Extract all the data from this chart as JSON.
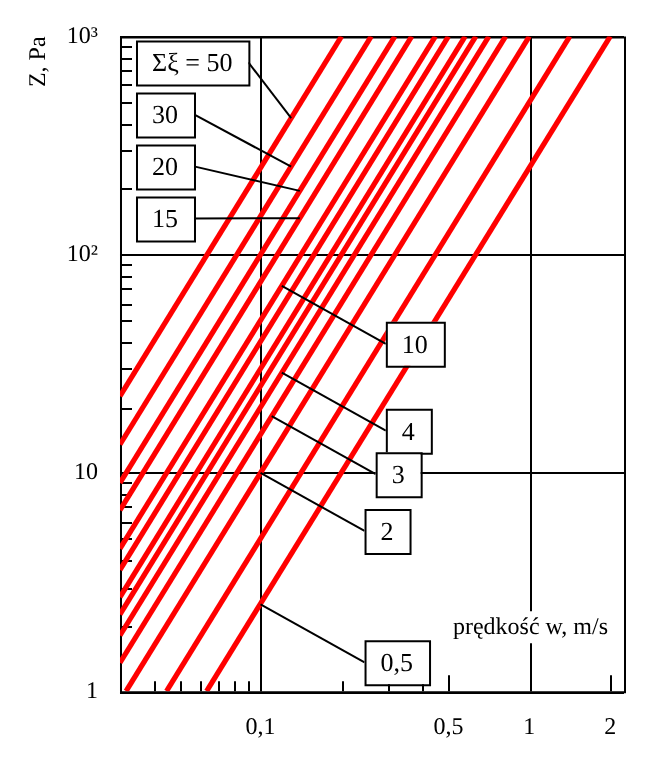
{
  "chart_data": {
    "type": "line",
    "xlabel": "prędkość w, m/s",
    "ylabel": "Z, Pa",
    "log": "xy",
    "grid": true,
    "legend": false,
    "marker": "none",
    "line_style": "solid",
    "xlim": [
      0.03,
      2.25
    ],
    "xticks": [
      {
        "value": 0.04,
        "label": null
      },
      {
        "value": 0.05,
        "label": null
      },
      {
        "value": 0.06,
        "label": null
      },
      {
        "value": 0.07,
        "label": null
      },
      {
        "value": 0.08,
        "label": null
      },
      {
        "value": 0.09,
        "label": null
      },
      {
        "value": 0.1,
        "label": "0,1"
      },
      {
        "value": 0.2,
        "label": null
      },
      {
        "value": 0.3,
        "label": null
      },
      {
        "value": 0.4,
        "label": null
      },
      {
        "value": 0.5,
        "label": "0,5"
      },
      {
        "value": 1,
        "label": "1"
      },
      {
        "value": 2,
        "label": "2"
      }
    ],
    "ylim": [
      1,
      1000
    ],
    "yticks": [
      1,
      {
        "value": 2,
        "label": null
      },
      {
        "value": 3,
        "label": null
      },
      {
        "value": 4,
        "label": null
      },
      {
        "value": 5,
        "label": null
      },
      {
        "value": 6,
        "label": null
      },
      {
        "value": 7,
        "label": null
      },
      {
        "value": 8,
        "label": null
      },
      {
        "value": 9,
        "label": null
      },
      10,
      {
        "value": 20,
        "label": null
      },
      {
        "value": 30,
        "label": null
      },
      {
        "value": 40,
        "label": null
      },
      {
        "value": 50,
        "label": null
      },
      {
        "value": 60,
        "label": null
      },
      {
        "value": 70,
        "label": null
      },
      {
        "value": 80,
        "label": null
      },
      {
        "value": 90,
        "label": null
      },
      {
        "value": 100,
        "label": "10²"
      },
      {
        "value": 200,
        "label": null
      },
      {
        "value": 300,
        "label": null
      },
      {
        "value": 400,
        "label": null
      },
      {
        "value": 500,
        "label": null
      },
      {
        "value": 600,
        "label": null
      },
      {
        "value": 700,
        "label": null
      },
      {
        "value": 800,
        "label": null
      },
      {
        "value": 900,
        "label": null
      },
      {
        "value": 1000,
        "label": "10³"
      }
    ],
    "series": [
      {
        "color": "#ff0000",
        "x": [
          0.063,
          2
        ],
        "values": [
          1,
          1000
        ]
      },
      {
        "color": "#ff0000",
        "x": [
          0.0447,
          1.414
        ],
        "values": [
          1,
          1000
        ]
      },
      {
        "color": "#ff0000",
        "x": [
          0.0316,
          1
        ],
        "values": [
          1,
          1000
        ]
      },
      {
        "color": "#ff0000",
        "x": [
          0.03,
          0.816
        ],
        "values": [
          1.35,
          1000
        ]
      },
      {
        "color": "#ff0000",
        "x": [
          0.03,
          0.707
        ],
        "values": [
          1.8,
          1000
        ]
      },
      {
        "color": "#ff0000",
        "x": [
          0.03,
          0.632
        ],
        "values": [
          2.25,
          1000
        ]
      },
      {
        "color": "#ff0000",
        "x": [
          0.03,
          0.577
        ],
        "values": [
          2.7,
          1000
        ]
      },
      {
        "color": "#ff0000",
        "x": [
          0.03,
          0.5
        ],
        "values": [
          3.6,
          1000
        ]
      },
      {
        "color": "#ff0000",
        "x": [
          0.03,
          0.447
        ],
        "values": [
          4.5,
          1000
        ]
      },
      {
        "color": "#ff0000",
        "x": [
          0.03,
          0.365
        ],
        "values": [
          6.75,
          1000
        ]
      },
      {
        "color": "#ff0000",
        "x": [
          0.03,
          0.316
        ],
        "values": [
          9,
          1000
        ]
      },
      {
        "color": "#ff0000",
        "x": [
          0.03,
          0.258
        ],
        "values": [
          13.5,
          1000
        ]
      },
      {
        "color": "#ff0000",
        "x": [
          0.03,
          0.2
        ],
        "values": [
          22.5,
          1000
        ]
      }
    ],
    "annotations": [
      {
        "text": "Σξ = 50",
        "x": 0.13,
        "y": 422
      },
      {
        "text": "30",
        "x": 0.13,
        "y": 253
      },
      {
        "text": "20",
        "x": 0.14,
        "y": 196
      },
      {
        "text": "15",
        "x": 0.14,
        "y": 147
      },
      {
        "text": "10",
        "x": 0.12,
        "y": 72
      },
      {
        "text": "4",
        "x": 0.12,
        "y": 28.8
      },
      {
        "text": "3",
        "x": 0.11,
        "y": 18.2
      },
      {
        "text": "2",
        "x": 0.1,
        "y": 10
      },
      {
        "text": "0,5",
        "x": 0.1,
        "y": 2.5
      }
    ]
  }
}
